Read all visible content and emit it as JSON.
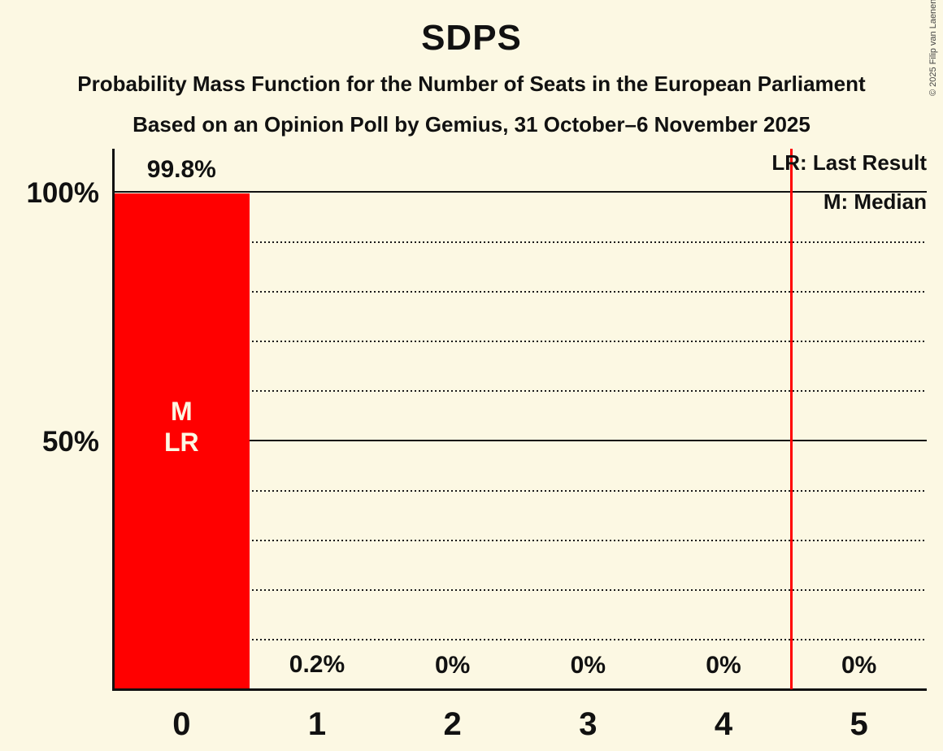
{
  "header": {
    "title": "SDPS",
    "subtitle1": "Probability Mass Function for the Number of Seats in the European Parliament",
    "subtitle2": "Based on an Opinion Poll by Gemius, 31 October–6 November 2025",
    "copyright": "© 2025 Filip van Laenen"
  },
  "legend": {
    "last_result_label": "LR: Last Result",
    "median_label": "M: Median"
  },
  "colors": {
    "background": "#FCF8E3",
    "bar": "#FF0000",
    "last_result_line": "#FF0000",
    "text": "#111111"
  },
  "chart_data": {
    "type": "bar",
    "title": "SDPS",
    "xlabel": "",
    "ylabel": "",
    "categories": [
      "0",
      "1",
      "2",
      "3",
      "4",
      "5"
    ],
    "values": [
      99.8,
      0.2,
      0,
      0,
      0,
      0
    ],
    "bar_labels": [
      "99.8%",
      "0.2%",
      "0%",
      "0%",
      "0%",
      "0%"
    ],
    "bar_annotation": {
      "category_index": 0,
      "lines": [
        "M",
        "LR"
      ]
    },
    "median_category": "0",
    "last_result_x": 4.5,
    "ylim": [
      0,
      100
    ],
    "ytick_labels": [
      {
        "percent": 100,
        "label": "100%"
      },
      {
        "percent": 50,
        "label": "50%"
      }
    ],
    "dotted_gridlines_percent": [
      90,
      80,
      70,
      60,
      40,
      30,
      20,
      10
    ],
    "solid_gridlines_percent": [
      100,
      50
    ],
    "grid": "dotted-horizontal",
    "legend_position": "top-right"
  }
}
